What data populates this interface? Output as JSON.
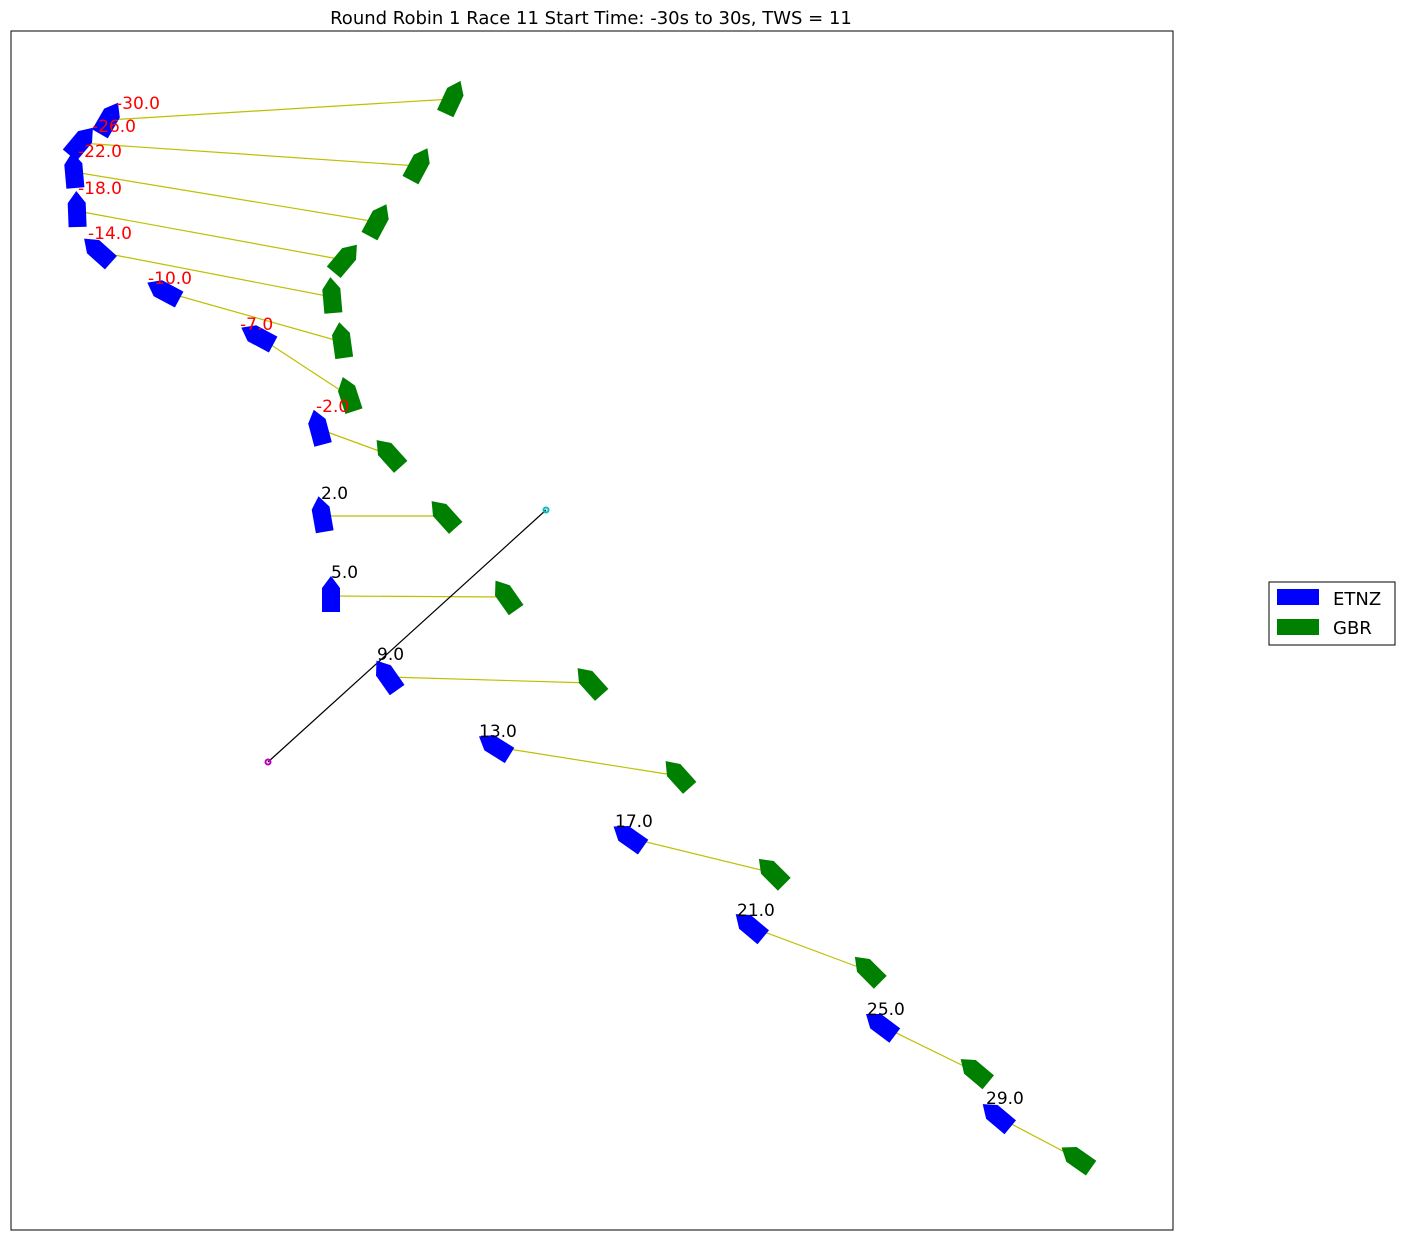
{
  "chart_data": {
    "type": "scatter",
    "title": "Round Robin 1 Race 11 Start Time: -30s to 30s, TWS = 11",
    "grid": false,
    "legend_placement": "right",
    "legend": [
      {
        "name": "ETNZ",
        "color": "#0000ff"
      },
      {
        "name": "GBR",
        "color": "#008000"
      }
    ],
    "pre_start_label_color": "#ff0000",
    "post_start_label_color": "#000000",
    "connector_color": "#bfbf00",
    "start_line": {
      "color": "#000000",
      "pin": {
        "x": 268,
        "y": 762,
        "color": "#bf00bf"
      },
      "committee": {
        "x": 546,
        "y": 510,
        "color": "#00bfbf"
      }
    },
    "times": [
      -30.0,
      -26.0,
      -22.0,
      -18.0,
      -14.0,
      -10.0,
      -7.0,
      -2.0,
      2.0,
      5.0,
      9.0,
      13.0,
      17.0,
      21.0,
      25.0,
      29.0
    ],
    "time_labels": [
      "-30.0",
      "-26.0",
      "-22.0",
      "-18.0",
      "-14.0",
      "-10.0",
      "-7.0",
      "-2.0",
      "2.0",
      "5.0",
      "9.0",
      "13.0",
      "17.0",
      "21.0",
      "25.0",
      "29.0"
    ],
    "series": [
      {
        "name": "ETNZ",
        "color": "#0000ff",
        "points": [
          {
            "x": 108,
            "y": 120,
            "heading": -150
          },
          {
            "x": 80,
            "y": 143,
            "heading": -140
          },
          {
            "x": 74,
            "y": 172,
            "heading": 175
          },
          {
            "x": 77,
            "y": 211,
            "heading": 178
          },
          {
            "x": 99,
            "y": 252,
            "heading": 132
          },
          {
            "x": 165,
            "y": 292,
            "heading": 118
          },
          {
            "x": 259,
            "y": 337,
            "heading": 118
          },
          {
            "x": 319,
            "y": 429,
            "heading": 165
          },
          {
            "x": 322,
            "y": 516,
            "heading": 170
          },
          {
            "x": 331,
            "y": 596,
            "heading": 180
          },
          {
            "x": 388,
            "y": 677,
            "heading": 145
          },
          {
            "x": 496,
            "y": 747,
            "heading": 122
          },
          {
            "x": 630,
            "y": 838,
            "heading": 125
          },
          {
            "x": 751,
            "y": 927,
            "heading": 130
          },
          {
            "x": 882,
            "y": 1026,
            "heading": 127
          },
          {
            "x": 998,
            "y": 1117,
            "heading": 130
          }
        ]
      },
      {
        "name": "GBR",
        "color": "#008000",
        "points": [
          {
            "x": 452,
            "y": 99,
            "heading": -155
          },
          {
            "x": 418,
            "y": 166,
            "heading": -152
          },
          {
            "x": 377,
            "y": 222,
            "heading": -152
          },
          {
            "x": 344,
            "y": 260,
            "heading": -140
          },
          {
            "x": 332,
            "y": 297,
            "heading": 175
          },
          {
            "x": 342,
            "y": 342,
            "heading": 172
          },
          {
            "x": 349,
            "y": 396,
            "heading": 162
          },
          {
            "x": 390,
            "y": 455,
            "heading": 138
          },
          {
            "x": 445,
            "y": 516,
            "heading": 138
          },
          {
            "x": 507,
            "y": 597,
            "heading": 145
          },
          {
            "x": 591,
            "y": 683,
            "heading": 138
          },
          {
            "x": 679,
            "y": 776,
            "heading": 138
          },
          {
            "x": 773,
            "y": 873,
            "heading": 135
          },
          {
            "x": 869,
            "y": 971,
            "heading": 135
          },
          {
            "x": 976,
            "y": 1072,
            "heading": 130
          },
          {
            "x": 1078,
            "y": 1159,
            "heading": 125
          }
        ]
      }
    ],
    "label_positions": [
      {
        "x": 116,
        "y": 109
      },
      {
        "x": 92,
        "y": 132
      },
      {
        "x": 78,
        "y": 157
      },
      {
        "x": 78,
        "y": 194
      },
      {
        "x": 88,
        "y": 239
      },
      {
        "x": 148,
        "y": 284
      },
      {
        "x": 240,
        "y": 330
      },
      {
        "x": 316,
        "y": 412
      },
      {
        "x": 321,
        "y": 499
      },
      {
        "x": 331,
        "y": 578
      },
      {
        "x": 377,
        "y": 660
      },
      {
        "x": 479,
        "y": 737
      },
      {
        "x": 615,
        "y": 827
      },
      {
        "x": 737,
        "y": 916
      },
      {
        "x": 867,
        "y": 1015
      },
      {
        "x": 986,
        "y": 1104
      }
    ]
  }
}
